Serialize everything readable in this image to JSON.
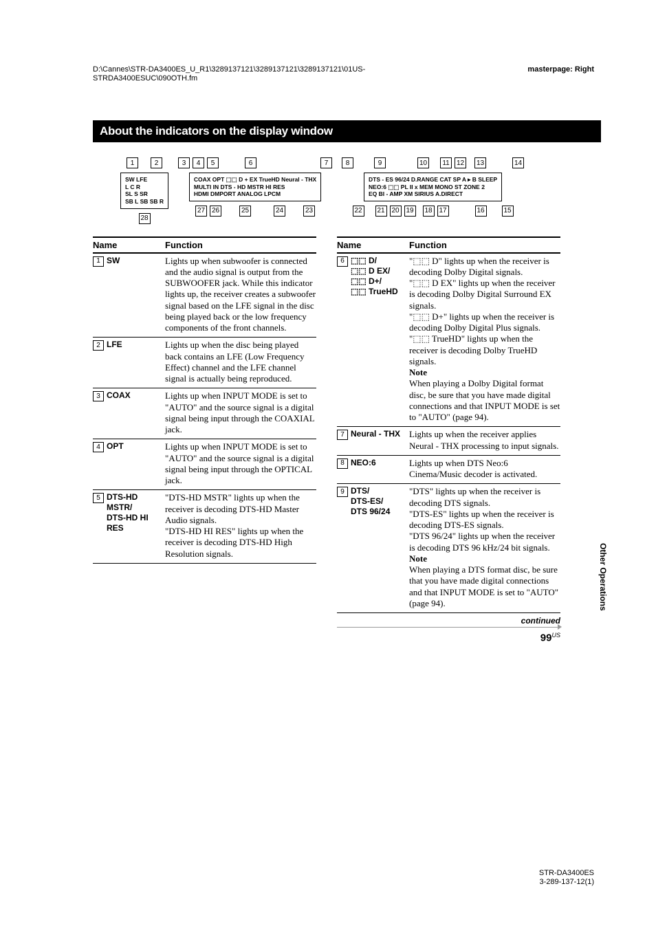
{
  "meta": {
    "top_left": "D:\\Cannes\\STR-DA3400ES_U_R1\\3289137121\\3289137121\\3289137121\\01US-STRDA3400ESUC\\090OTH.fm",
    "top_right": "masterpage: Right",
    "foot_model": "STR-DA3400ES",
    "foot_code": "3-289-137-12(1)"
  },
  "section_title": "About the indicators on the display window",
  "diagram": {
    "top_refs_left": [
      "1",
      "2"
    ],
    "top_refs_mid_a": [
      "3",
      "4",
      "5"
    ],
    "top_refs_mid_b": [
      "6"
    ],
    "top_refs_mid_c": [
      "7"
    ],
    "top_refs_r1": [
      "8"
    ],
    "top_refs_r2": [
      "9"
    ],
    "top_refs_r3": [
      "10"
    ],
    "top_refs_r4": [
      "11",
      "12"
    ],
    "top_refs_r5": [
      "13"
    ],
    "top_refs_r6": [
      "14"
    ],
    "panel1_l1": "SW   LFE",
    "panel1_l2": " L   C   R",
    "panel1_l3": "SL   S   SR",
    "panel1_l4": "SB L  SB  SB R",
    "panel2_l1": "COAX OPT    ⬚⬚ D + EX   TrueHD Neural - THX",
    "panel2_l2": "MULTI IN    DTS - HD MSTR HI RES",
    "panel2_l3": "HDMI        DMPORT  ANALOG  LPCM",
    "panel3_l1": "DTS - ES 96/24 D.RANGE CAT     SP A ▸ B    SLEEP",
    "panel3_l2": "NEO:6 ⬚⬚ PL II x  MEM MONO         ST   ZONE 2",
    "panel3_l3": "EQ BI - AMP     XM  SIRIUS    A.DIRECT",
    "bot_refs_left": [
      "28"
    ],
    "bot_refs_a": [
      "27",
      "26"
    ],
    "bot_refs_b": [
      "25"
    ],
    "bot_refs_c": [
      "24"
    ],
    "bot_refs_d": [
      "23"
    ],
    "bot_refs_e": [
      "22"
    ],
    "bot_refs_f": [
      "21",
      "20",
      "19"
    ],
    "bot_refs_g": [
      "18",
      "17"
    ],
    "bot_refs_h": [
      "16"
    ],
    "bot_refs_i": [
      "15"
    ]
  },
  "table_head_name": "Name",
  "table_head_func": "Function",
  "left_table": [
    {
      "idx": "1",
      "name": "SW",
      "func": "Lights up when subwoofer is connected and the audio signal is output from the SUBWOOFER jack. While this indicator lights up, the receiver creates a subwoofer signal based on the LFE signal in the disc being played back or the low frequency components of the front channels."
    },
    {
      "idx": "2",
      "name": "LFE",
      "func": "Lights up when the disc being played back contains an LFE (Low Frequency Effect) channel and the LFE channel signal is actually being reproduced."
    },
    {
      "idx": "3",
      "name": "COAX",
      "func": "Lights up when INPUT MODE is set to \"AUTO\" and the source signal is a digital signal being input through the COAXIAL jack."
    },
    {
      "idx": "4",
      "name": "OPT",
      "func": "Lights up when INPUT MODE is set to \"AUTO\" and the source signal is a digital signal being input through the OPTICAL jack."
    },
    {
      "idx": "5",
      "name": "DTS-HD MSTR/\nDTS-HD HI RES",
      "func": "\"DTS-HD MSTR\" lights up when the receiver is decoding DTS-HD Master Audio signals.\n\"DTS-HD HI RES\" lights up when the receiver is decoding DTS-HD High Resolution signals."
    }
  ],
  "right_table": [
    {
      "idx": "6",
      "name": "⬚⬚ D/\n⬚⬚ D EX/\n⬚⬚ D+/\n⬚⬚ TrueHD",
      "func": "\"⬚⬚ D\" lights up when the receiver is decoding Dolby Digital signals.\n\"⬚⬚ D EX\" lights up when the receiver is decoding Dolby Digital Surround EX signals.\n\"⬚⬚ D+\" lights up when the receiver is decoding Dolby Digital Plus signals.\n\"⬚⬚ TrueHD\" lights up when the receiver is decoding Dolby TrueHD signals.",
      "note": "Note",
      "note_text": "When playing a Dolby Digital format disc, be sure that you have made digital connections and that INPUT MODE is set to \"AUTO\" (page 94)."
    },
    {
      "idx": "7",
      "name": "Neural - THX",
      "func": "Lights up when the receiver applies Neural - THX processing to input signals."
    },
    {
      "idx": "8",
      "name": "NEO:6",
      "func": "Lights up when DTS Neo:6 Cinema/Music decoder is activated."
    },
    {
      "idx": "9",
      "name": "DTS/\nDTS-ES/\nDTS 96/24",
      "func": "\"DTS\" lights up when the receiver is decoding DTS signals.\n\"DTS-ES\" lights up when the receiver is decoding DTS-ES signals.\n\"DTS 96/24\" lights up when the receiver is decoding DTS 96 kHz/24 bit signals.",
      "note": "Note",
      "note_text": "When playing a DTS format disc, be sure that you have made digital connections and that INPUT MODE is set to \"AUTO\" (page 94)."
    }
  ],
  "continued": "continued",
  "page_num": "99",
  "page_suffix": "US",
  "side_tab": "Other Operations"
}
